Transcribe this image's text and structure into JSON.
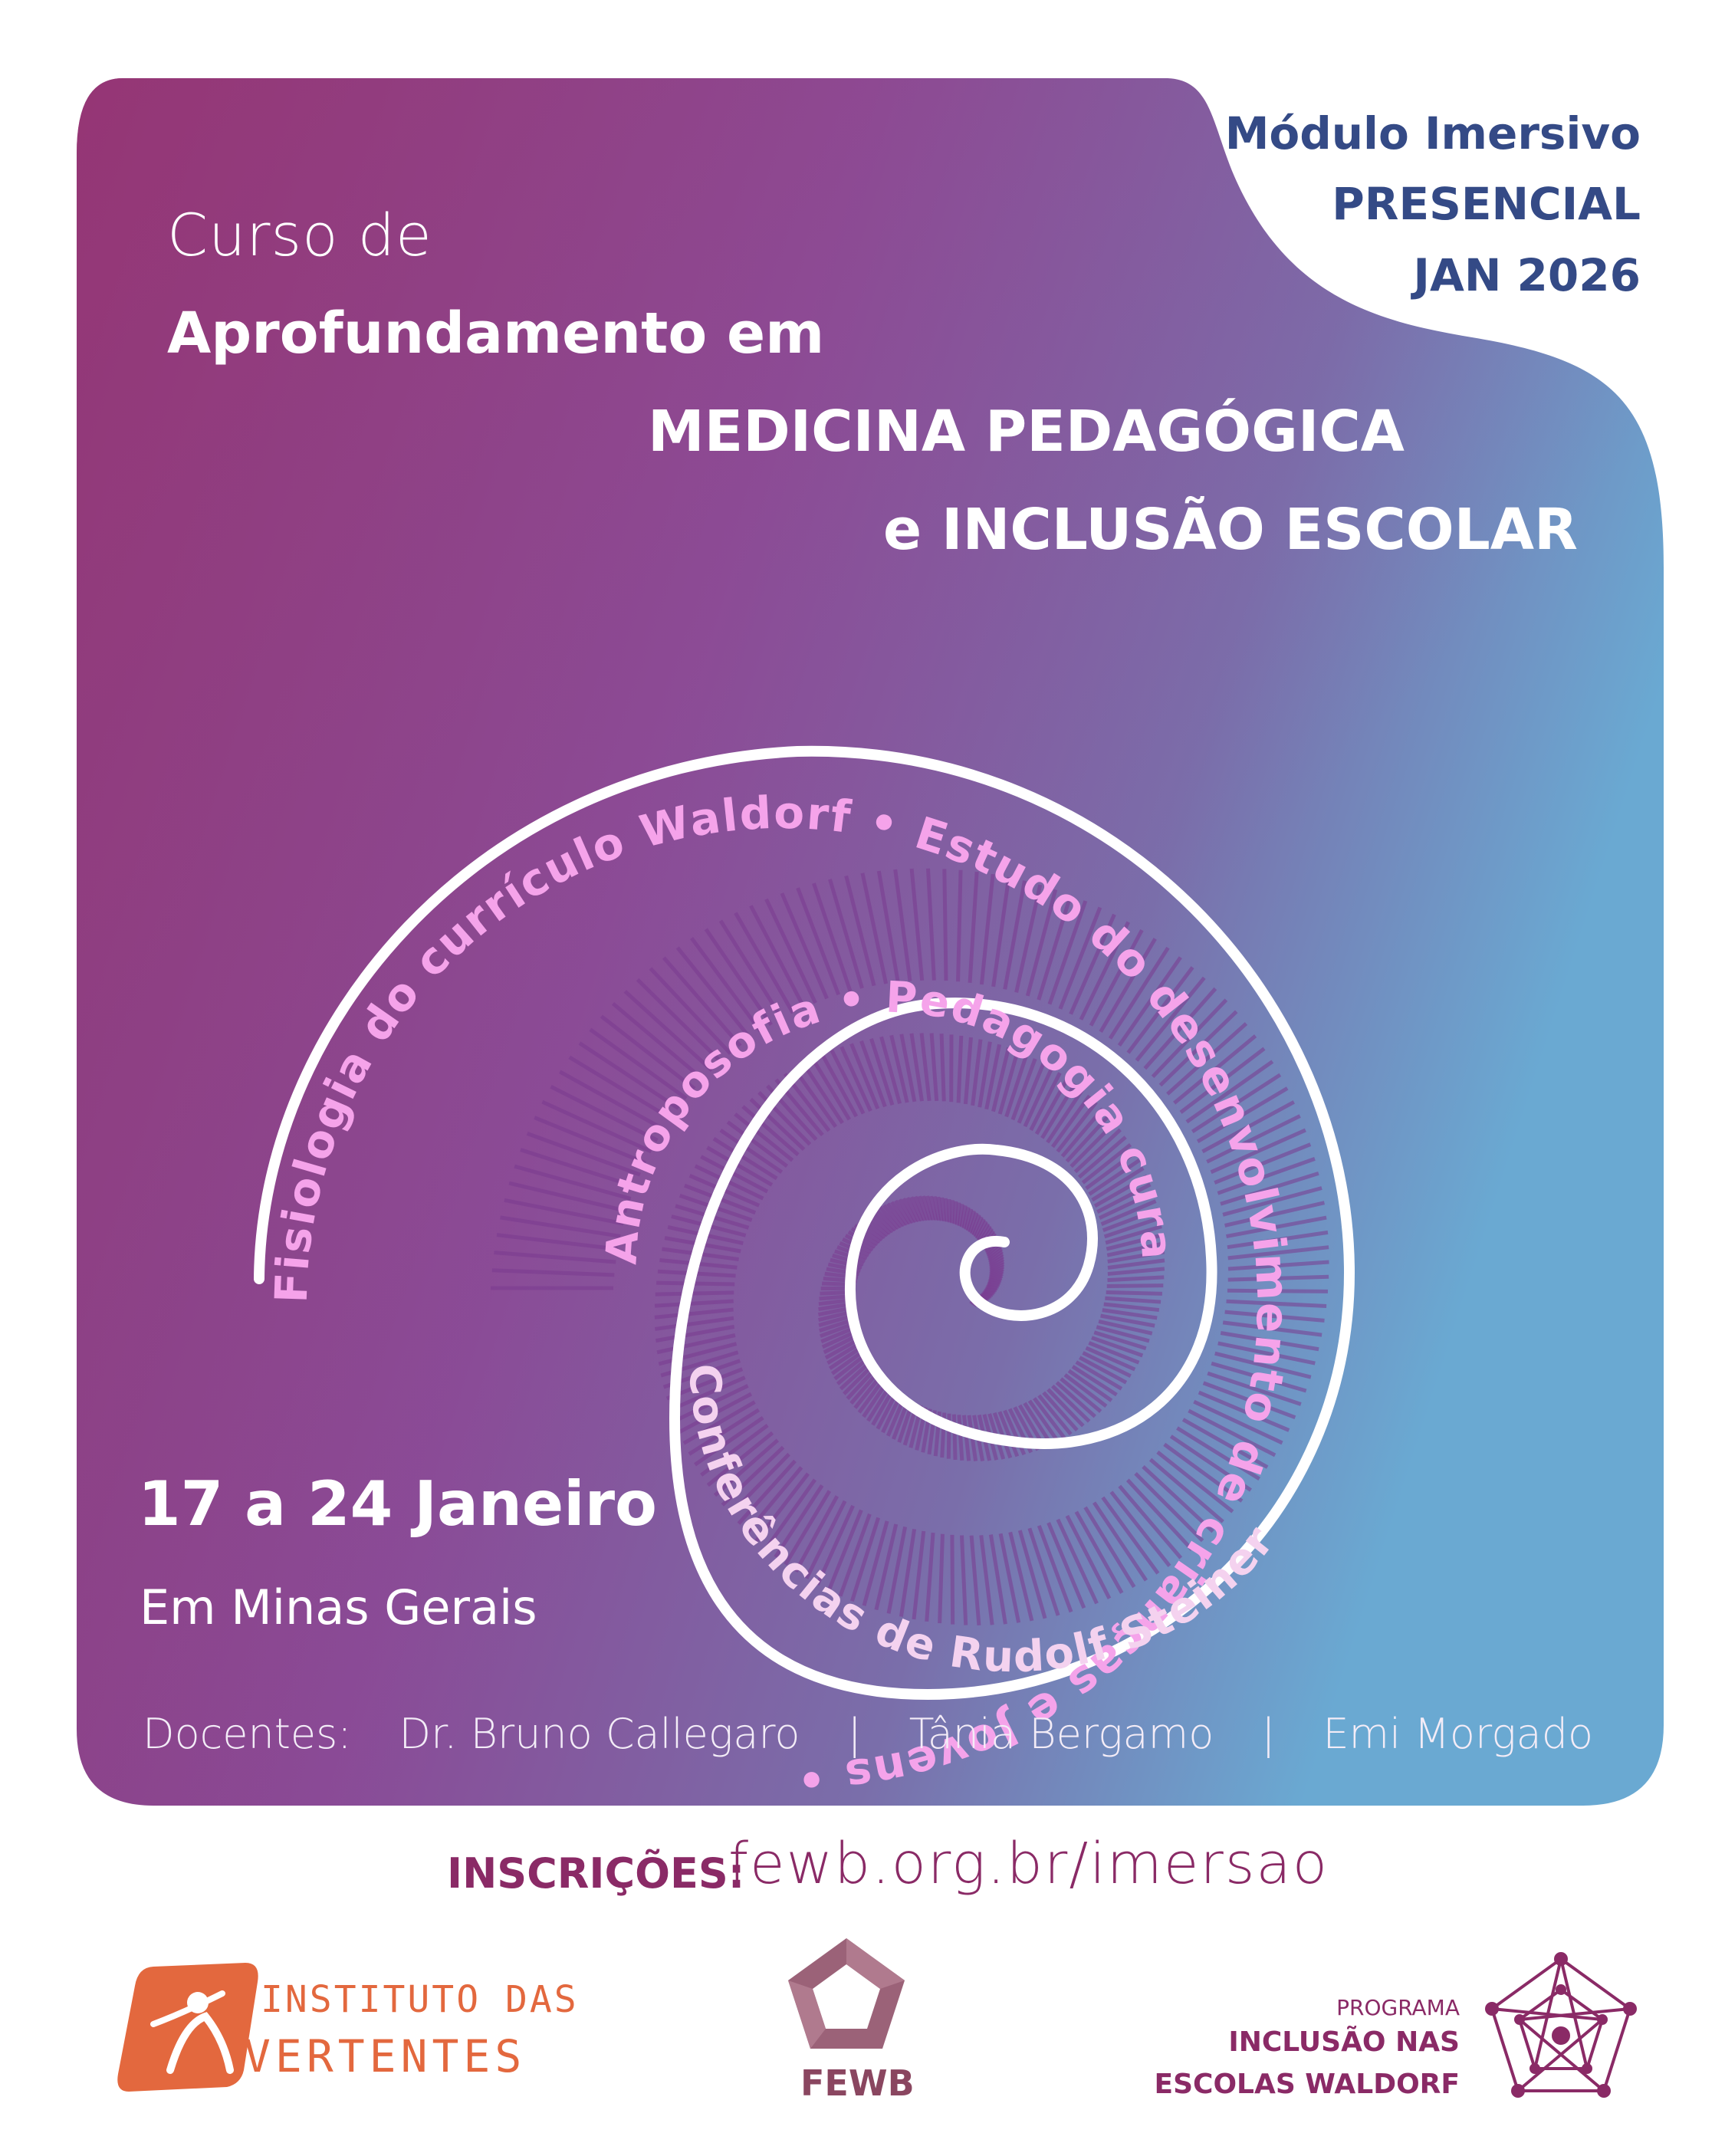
{
  "module": {
    "line1": "Módulo Imersivo",
    "line2": "PRESENCIAL",
    "line3": "JAN 2026"
  },
  "title": {
    "line1": "Curso de",
    "line2": "Aprofundamento em",
    "line3": "MEDICINA PEDAGÓGICA",
    "line4": "e INCLUSÃO ESCOLAR"
  },
  "spiral": {
    "outer_text": "Fisiologia do currículo Waldorf • Estudo do desenvolvimento de crianças e Jovens •",
    "inner_text": "Antroposofia • Pedagogia curativa",
    "bottom_text": "Conferências de Rudolf Steiner"
  },
  "event": {
    "dates": "17 a 24 Janeiro",
    "location": "Em Minas Gerais"
  },
  "docentes": {
    "label": "Docentes:",
    "names": [
      "Dr. Bruno Callegaro",
      "|",
      "Tânia Bergamo",
      "|",
      "Emi Morgado"
    ]
  },
  "registration": {
    "label": "INSCRIÇÕES:",
    "url": "fewb.org.br/imersao"
  },
  "logos": {
    "instituto_line1": "INSTITUTO DAS",
    "instituto_line2": "VERTENTES",
    "fewb": "FEWB",
    "programa_l1": "PROGRAMA",
    "programa_l2": "INCLUSÃO NAS",
    "programa_l3": "ESCOLAS WALDORF"
  },
  "colors": {
    "panel_start": "#8c2f6e",
    "panel_mid": "#8a4d97",
    "panel_end": "#6fa6cf",
    "module_text": "#344a86",
    "brand_purple": "#8a2a66",
    "instituto_orange": "#e3683e",
    "spiral_pink": "#f5a3ea",
    "spiral_lightblue": "#c8eaf7"
  }
}
